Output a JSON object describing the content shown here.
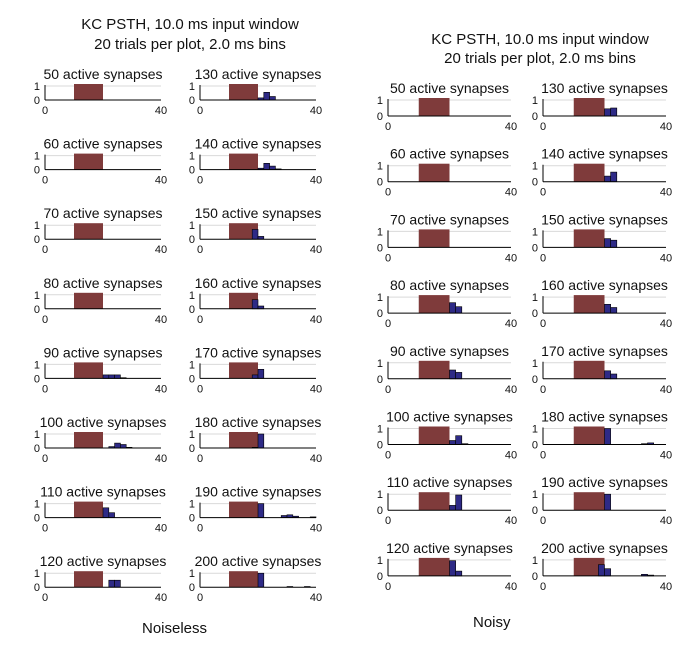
{
  "colors": {
    "stimulus": "#7f3b3b",
    "bar_fill": "#2e2a86",
    "bar_stroke": "#000000",
    "grid": "#d9d9d9",
    "axis": "#000000"
  },
  "panels": [
    {
      "caption": "Noiseless",
      "title_lines": [
        "KC PSTH,  10.0 ms input window",
        "20 trials per plot, 2.0 ms bins"
      ]
    },
    {
      "caption": "Noisy",
      "title_lines": [
        "KC PSTH,  10.0 ms input window",
        "20 trials per plot, 2.0 ms bins"
      ]
    }
  ],
  "chart_data": [
    {
      "type": "bar",
      "panel": "Noiseless",
      "bin_width_ms": 2,
      "stimulus_window_ms": [
        10,
        20
      ],
      "xlim": [
        0,
        40
      ],
      "ylim": [
        0,
        1
      ],
      "xticks": [
        0,
        40
      ],
      "yticks": [
        0,
        1
      ],
      "subplots": [
        {
          "title": "50 active synapses",
          "bins": []
        },
        {
          "title": "130 active synapses",
          "bins": [
            [
              20,
              0.15
            ],
            [
              22,
              0.55
            ],
            [
              24,
              0.25
            ]
          ]
        },
        {
          "title": "60 active synapses",
          "bins": []
        },
        {
          "title": "140 active synapses",
          "bins": [
            [
              20,
              0.1
            ],
            [
              22,
              0.45
            ],
            [
              24,
              0.25
            ],
            [
              26,
              0.05
            ]
          ]
        },
        {
          "title": "70 active synapses",
          "bins": []
        },
        {
          "title": "150 active synapses",
          "bins": [
            [
              18,
              0.7
            ],
            [
              20,
              0.2
            ]
          ]
        },
        {
          "title": "80 active synapses",
          "bins": []
        },
        {
          "title": "160 active synapses",
          "bins": [
            [
              18,
              0.65
            ],
            [
              20,
              0.2
            ]
          ]
        },
        {
          "title": "90 active synapses",
          "bins": [
            [
              20,
              0.25
            ],
            [
              22,
              0.25
            ],
            [
              24,
              0.25
            ],
            [
              26,
              0.05
            ]
          ]
        },
        {
          "title": "170 active synapses",
          "bins": [
            [
              18,
              0.25
            ],
            [
              20,
              0.65
            ]
          ]
        },
        {
          "title": "100 active synapses",
          "bins": [
            [
              22,
              0.1
            ],
            [
              24,
              0.35
            ],
            [
              26,
              0.25
            ],
            [
              28,
              0.05
            ]
          ]
        },
        {
          "title": "180 active synapses",
          "bins": [
            [
              18,
              0.05
            ],
            [
              20,
              1.0
            ]
          ]
        },
        {
          "title": "110 active synapses",
          "bins": [
            [
              20,
              0.7
            ],
            [
              22,
              0.35
            ]
          ]
        },
        {
          "title": "190 active synapses",
          "bins": [
            [
              20,
              1.0
            ],
            [
              28,
              0.15
            ],
            [
              30,
              0.2
            ],
            [
              32,
              0.1
            ],
            [
              38,
              0.05
            ]
          ]
        },
        {
          "title": "120 active synapses",
          "bins": [
            [
              22,
              0.5
            ],
            [
              24,
              0.5
            ]
          ]
        },
        {
          "title": "200 active synapses",
          "bins": [
            [
              20,
              1.0
            ],
            [
              30,
              0.05
            ],
            [
              36,
              0.05
            ]
          ]
        }
      ]
    },
    {
      "type": "bar",
      "panel": "Noisy",
      "bin_width_ms": 2,
      "stimulus_window_ms": [
        10,
        20
      ],
      "xlim": [
        0,
        40
      ],
      "ylim": [
        0,
        1
      ],
      "xticks": [
        0,
        40
      ],
      "yticks": [
        0,
        1
      ],
      "subplots": [
        {
          "title": "50 active synapses",
          "bins": []
        },
        {
          "title": "130 active synapses",
          "bins": [
            [
              20,
              0.45
            ],
            [
              22,
              0.5
            ]
          ]
        },
        {
          "title": "60 active synapses",
          "bins": []
        },
        {
          "title": "140 active synapses",
          "bins": [
            [
              20,
              0.35
            ],
            [
              22,
              0.6
            ]
          ]
        },
        {
          "title": "70 active synapses",
          "bins": []
        },
        {
          "title": "150 active synapses",
          "bins": [
            [
              20,
              0.55
            ],
            [
              22,
              0.45
            ]
          ]
        },
        {
          "title": "80 active synapses",
          "bins": [
            [
              20,
              0.65
            ],
            [
              22,
              0.4
            ]
          ]
        },
        {
          "title": "160 active synapses",
          "bins": [
            [
              20,
              0.55
            ],
            [
              22,
              0.35
            ]
          ]
        },
        {
          "title": "90 active synapses",
          "bins": [
            [
              20,
              0.55
            ],
            [
              22,
              0.4
            ]
          ]
        },
        {
          "title": "170 active synapses",
          "bins": [
            [
              20,
              0.5
            ],
            [
              22,
              0.3
            ]
          ]
        },
        {
          "title": "100 active synapses",
          "bins": [
            [
              20,
              0.25
            ],
            [
              22,
              0.55
            ],
            [
              24,
              0.05
            ]
          ]
        },
        {
          "title": "180 active synapses",
          "bins": [
            [
              20,
              1.0
            ],
            [
              32,
              0.05
            ],
            [
              34,
              0.1
            ]
          ]
        },
        {
          "title": "110 active synapses",
          "bins": [
            [
              20,
              0.3
            ],
            [
              22,
              0.95
            ]
          ]
        },
        {
          "title": "190 active synapses",
          "bins": [
            [
              20,
              1.0
            ]
          ]
        },
        {
          "title": "120 active synapses",
          "bins": [
            [
              20,
              0.95
            ],
            [
              22,
              0.3
            ]
          ]
        },
        {
          "title": "200 active synapses",
          "bins": [
            [
              18,
              0.7
            ],
            [
              20,
              0.45
            ],
            [
              32,
              0.1
            ],
            [
              34,
              0.05
            ]
          ]
        }
      ]
    }
  ]
}
